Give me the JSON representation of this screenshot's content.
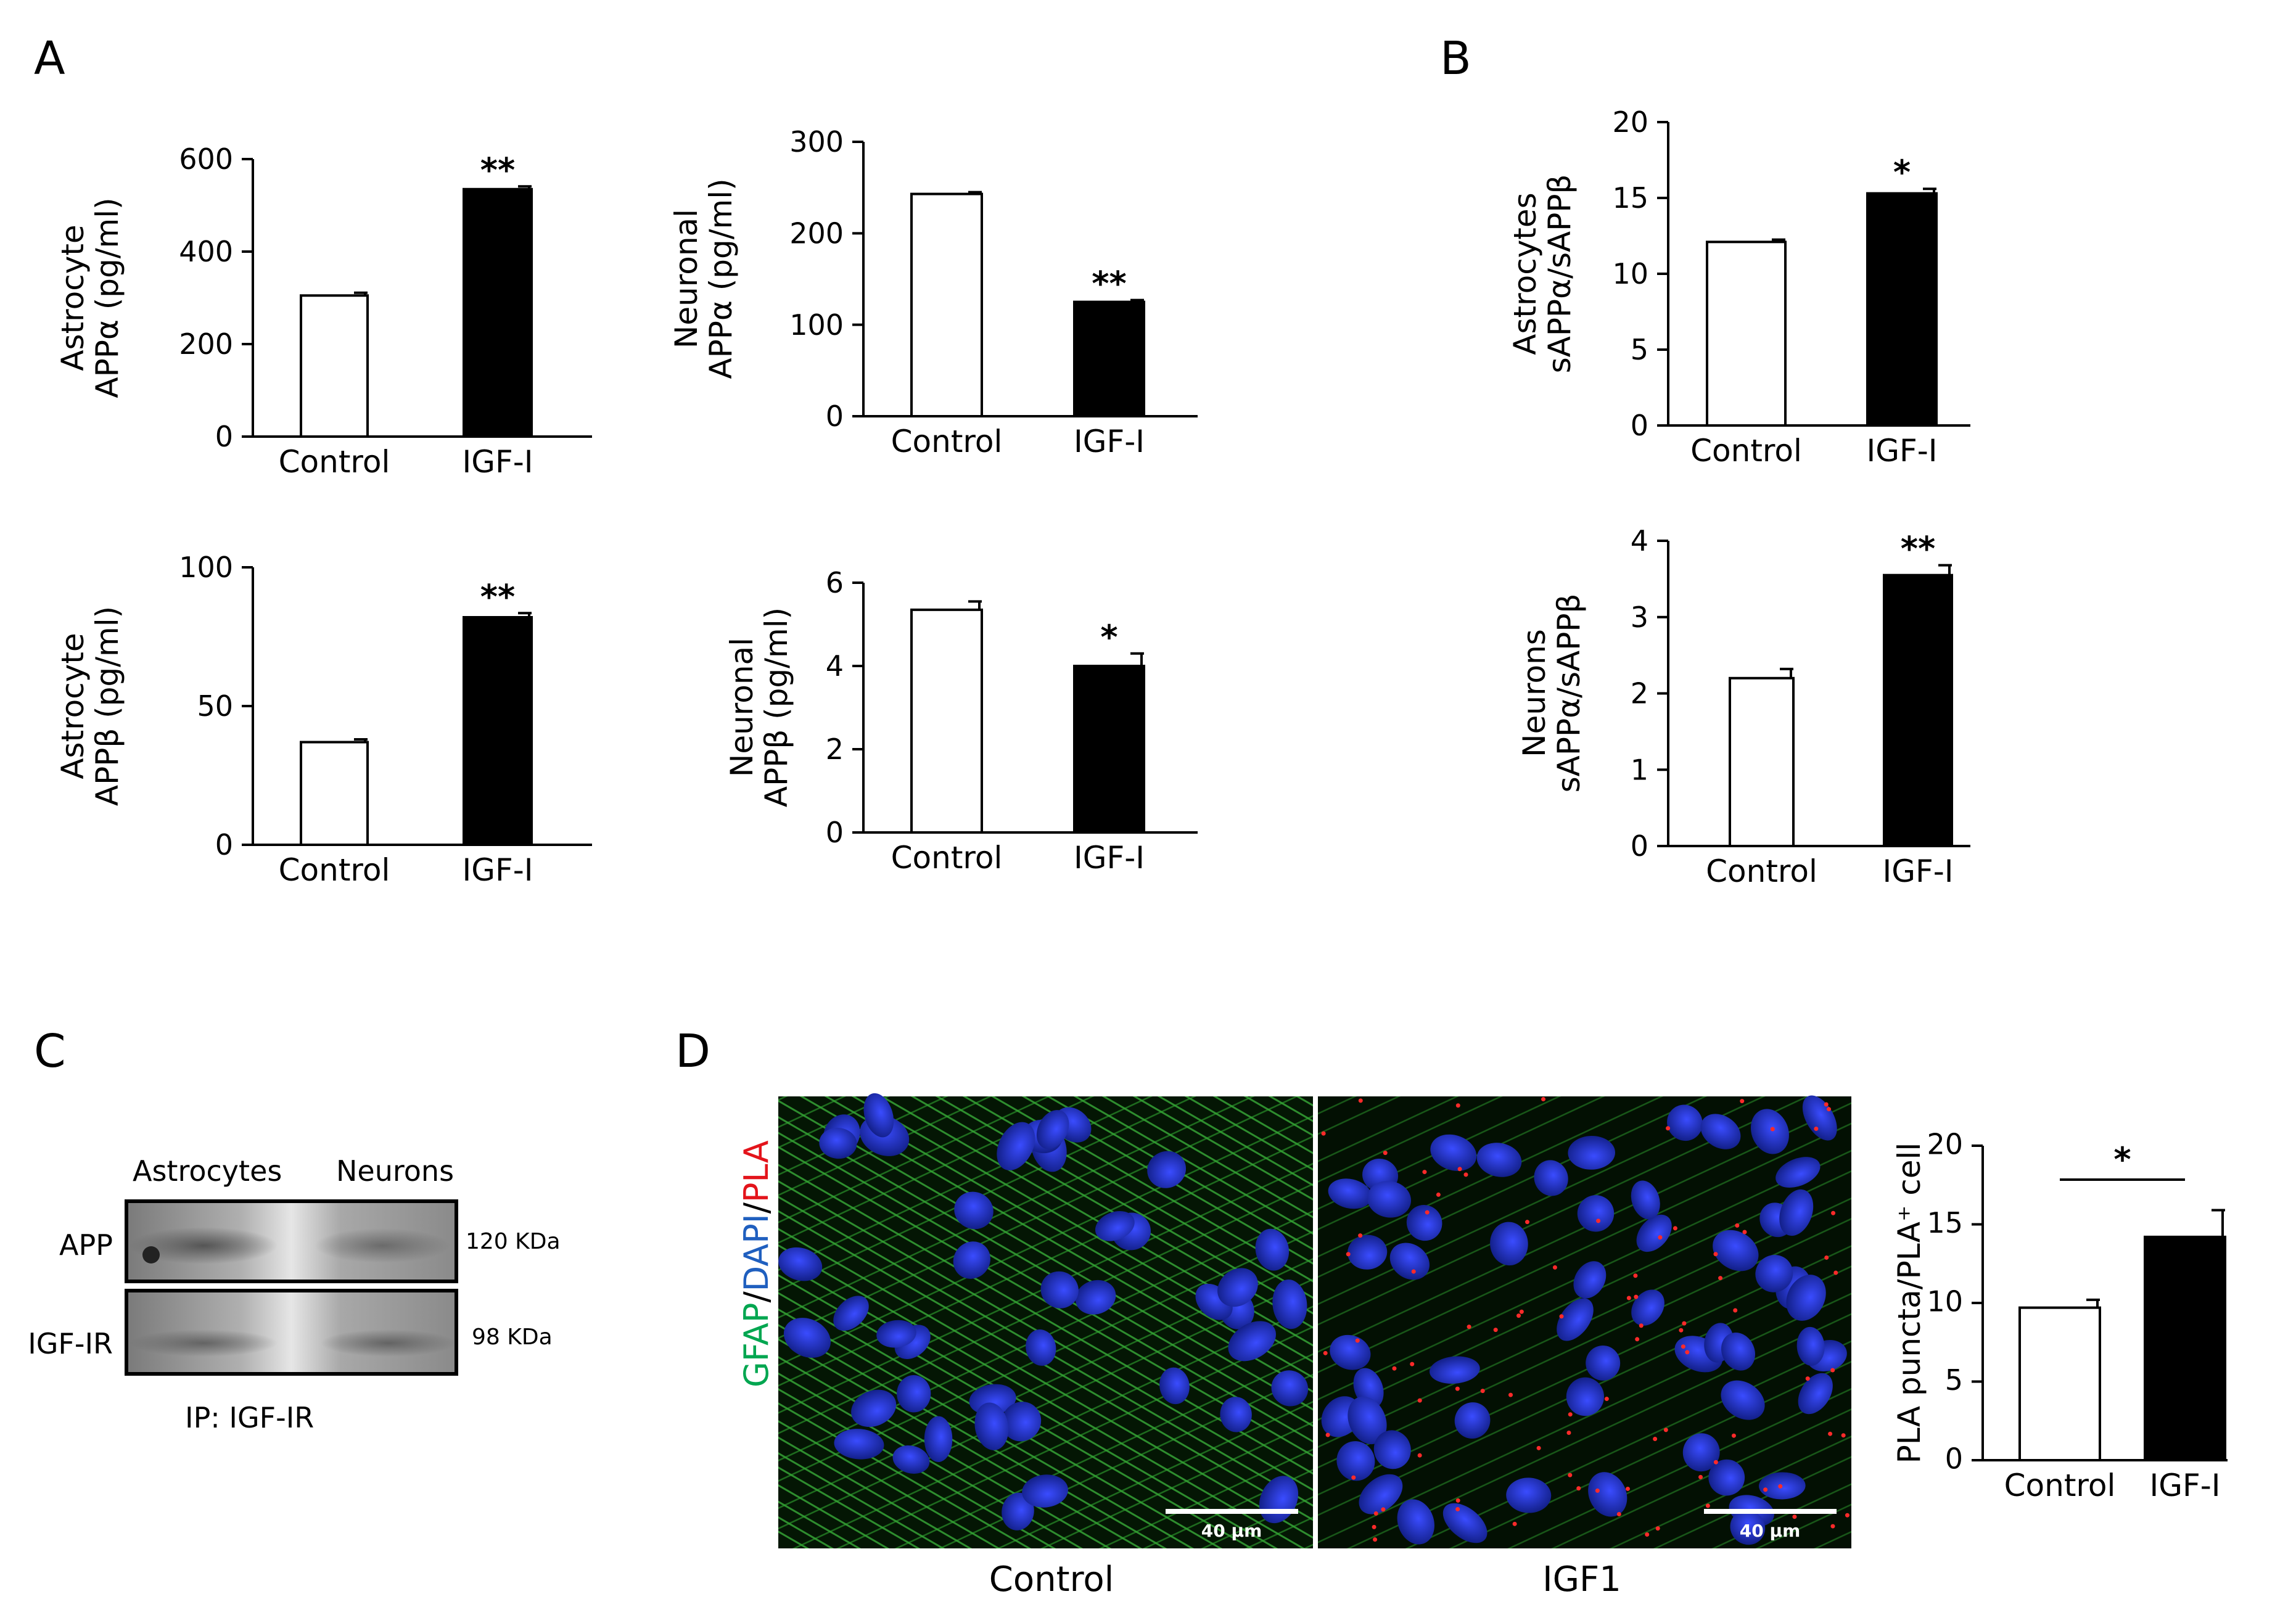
{
  "panels": {
    "A": "A",
    "B": "B",
    "C": "C",
    "D": "D"
  },
  "chart_data": [
    {
      "id": "astro-appa",
      "type": "bar",
      "panel": "A",
      "ylabel_lines": [
        "Astrocyte",
        "APPα (pg/ml)"
      ],
      "categories": [
        "Control",
        "IGF-I"
      ],
      "values": [
        305,
        535
      ],
      "errors": [
        6,
        6
      ],
      "significance": [
        "",
        "**"
      ],
      "ylim": [
        0,
        600
      ],
      "yticks": [
        0,
        200,
        400,
        600
      ],
      "colors": [
        "#ffffff",
        "#000000"
      ]
    },
    {
      "id": "neuro-appa",
      "type": "bar",
      "panel": "A",
      "ylabel_lines": [
        "Neuronal",
        "APPα (pg/ml)"
      ],
      "categories": [
        "Control",
        "IGF-I"
      ],
      "values": [
        243,
        125
      ],
      "errors": [
        2,
        2
      ],
      "significance": [
        "",
        "**"
      ],
      "ylim": [
        0,
        300
      ],
      "yticks": [
        0,
        100,
        200,
        300
      ],
      "colors": [
        "#ffffff",
        "#000000"
      ]
    },
    {
      "id": "astro-appb",
      "type": "bar",
      "panel": "A",
      "ylabel_lines": [
        "Astrocyte",
        "APPβ (pg/ml)"
      ],
      "categories": [
        "Control",
        "IGF-I"
      ],
      "values": [
        37,
        82
      ],
      "errors": [
        1,
        1.5
      ],
      "significance": [
        "",
        "**"
      ],
      "ylim": [
        0,
        100
      ],
      "yticks": [
        0,
        50,
        100
      ],
      "colors": [
        "#ffffff",
        "#000000"
      ]
    },
    {
      "id": "neuro-appb",
      "type": "bar",
      "panel": "A",
      "ylabel_lines": [
        "Neuronal",
        "APPβ (pg/ml)"
      ],
      "categories": [
        "Control",
        "IGF-I"
      ],
      "values": [
        5.35,
        4.0
      ],
      "errors": [
        0.2,
        0.3
      ],
      "significance": [
        "",
        "*"
      ],
      "ylim": [
        0,
        6
      ],
      "yticks": [
        0,
        2,
        4,
        6
      ],
      "colors": [
        "#ffffff",
        "#000000"
      ]
    },
    {
      "id": "astro-ratio",
      "type": "bar",
      "panel": "B",
      "ylabel_lines": [
        "Astrocytes",
        "sAPPα/sAPPβ"
      ],
      "categories": [
        "Control",
        "IGF-I"
      ],
      "values": [
        12.1,
        15.3
      ],
      "errors": [
        0.15,
        0.3
      ],
      "significance": [
        "",
        "*"
      ],
      "ylim": [
        0,
        20
      ],
      "yticks": [
        0,
        5,
        10,
        15,
        20
      ],
      "colors": [
        "#ffffff",
        "#000000"
      ]
    },
    {
      "id": "neuron-ratio",
      "type": "bar",
      "panel": "B",
      "ylabel_lines": [
        "Neurons",
        "sAPPα/sAPPβ"
      ],
      "categories": [
        "Control",
        "IGF-I"
      ],
      "values": [
        2.2,
        3.55
      ],
      "errors": [
        0.12,
        0.13
      ],
      "significance": [
        "",
        "**"
      ],
      "ylim": [
        0,
        4
      ],
      "yticks": [
        0,
        1,
        2,
        3,
        4
      ],
      "colors": [
        "#ffffff",
        "#000000"
      ]
    },
    {
      "id": "pla-puncta",
      "type": "bar",
      "panel": "D",
      "ylabel_lines": [
        "PLA puncta/PLA⁺ cell"
      ],
      "categories": [
        "Control",
        "IGF-I"
      ],
      "values": [
        9.7,
        14.2
      ],
      "errors": [
        0.5,
        1.7
      ],
      "significance": [
        "*"
      ],
      "significance_bracket": true,
      "ylim": [
        0,
        20
      ],
      "yticks": [
        0,
        5,
        10,
        15,
        20
      ],
      "colors": [
        "#ffffff",
        "#000000"
      ]
    }
  ],
  "blot": {
    "col_labels": [
      "Astrocytes",
      "Neurons"
    ],
    "row_labels": [
      "APP",
      "IGF-IR"
    ],
    "kda": [
      "120 KDa",
      "98 KDa"
    ],
    "ip": "IP:  IGF-IR"
  },
  "micro": {
    "stain": {
      "a": "GFAP",
      "s1": "/",
      "b": "DAPI",
      "s2": "/",
      "c": "PLA"
    },
    "stain_colors": {
      "a": "#00a650",
      "s1": "#000000",
      "b": "#1f5fbf",
      "s2": "#000000",
      "c": "#e3141b"
    },
    "captions": [
      "Control",
      "IGF1"
    ],
    "scalebar": "40 μm"
  }
}
